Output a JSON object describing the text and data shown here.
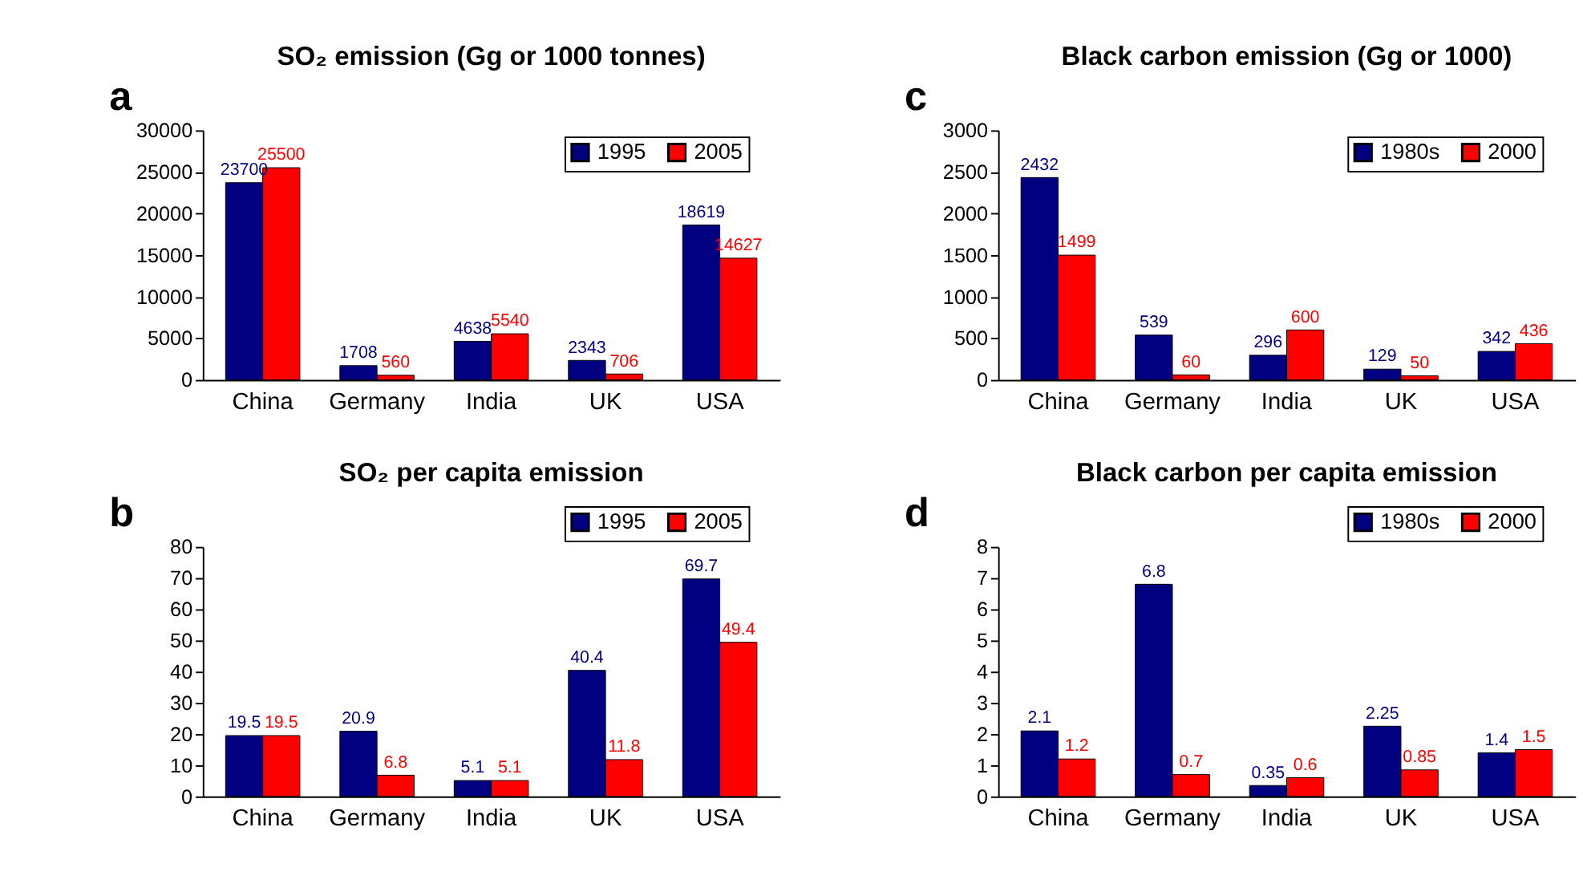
{
  "chart_data": [
    {
      "type": "bar",
      "title": "SO₂ emission (Gg or 1000 tonnes)",
      "annotations": [
        "a"
      ],
      "categories": [
        "China",
        "Germany",
        "India",
        "UK",
        "USA"
      ],
      "ylim": [
        0,
        30000
      ],
      "yticks": [
        0,
        5000,
        10000,
        15000,
        20000,
        25000,
        30000
      ],
      "data_labels": true,
      "legend": "top right",
      "series": [
        {
          "name": "1995",
          "color": "#000080",
          "values": [
            23700,
            1708,
            4638,
            2343,
            18619
          ]
        },
        {
          "name": "2005",
          "color": "#ff0000",
          "values": [
            25500,
            560,
            5540,
            706,
            14627
          ]
        }
      ]
    },
    {
      "type": "bar",
      "title": "Black carbon emission (Gg or 1000)",
      "annotations": [
        "c"
      ],
      "categories": [
        "China",
        "Germany",
        "India",
        "UK",
        "USA"
      ],
      "ylim": [
        0,
        3000
      ],
      "yticks": [
        0,
        500,
        1000,
        1500,
        2000,
        2500,
        3000
      ],
      "data_labels": true,
      "legend": "top right",
      "series": [
        {
          "name": "1980s",
          "color": "#000080",
          "values": [
            2432,
            539,
            296,
            129,
            342
          ]
        },
        {
          "name": "2000",
          "color": "#ff0000",
          "values": [
            1499,
            60,
            600,
            50,
            436
          ]
        }
      ]
    },
    {
      "type": "bar",
      "title": "SO₂ per capita emission",
      "annotations": [
        "b"
      ],
      "categories": [
        "China",
        "Germany",
        "India",
        "UK",
        "USA"
      ],
      "ylim": [
        0,
        80
      ],
      "yticks": [
        0,
        10,
        20,
        30,
        40,
        50,
        60,
        70,
        80
      ],
      "data_labels": true,
      "legend": "top right",
      "series": [
        {
          "name": "1995",
          "color": "#000080",
          "values": [
            19.5,
            20.9,
            5.1,
            40.4,
            69.7
          ]
        },
        {
          "name": "2005",
          "color": "#ff0000",
          "values": [
            19.5,
            6.8,
            5.1,
            11.8,
            49.4
          ]
        }
      ]
    },
    {
      "type": "bar",
      "title": "Black carbon per capita emission",
      "annotations": [
        "d"
      ],
      "categories": [
        "China",
        "Germany",
        "India",
        "UK",
        "USA"
      ],
      "ylim": [
        0,
        8
      ],
      "yticks": [
        0,
        1,
        2,
        3,
        4,
        5,
        6,
        7,
        8
      ],
      "data_labels": true,
      "legend": "top right",
      "series": [
        {
          "name": "1980s",
          "color": "#000080",
          "values": [
            2.1,
            6.8,
            0.35,
            2.25,
            1.4
          ]
        },
        {
          "name": "2000",
          "color": "#ff0000",
          "values": [
            1.2,
            0.7,
            0.6,
            0.85,
            1.5
          ]
        }
      ]
    }
  ]
}
